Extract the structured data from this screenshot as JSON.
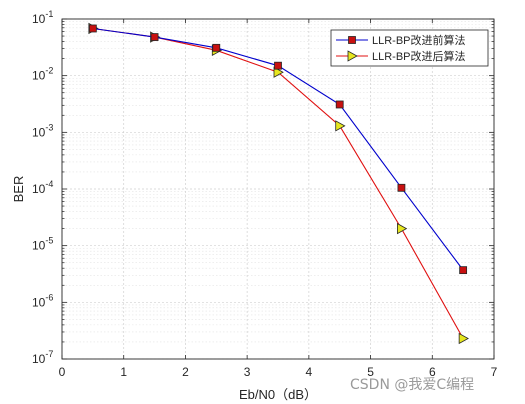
{
  "chart_data": {
    "type": "line",
    "xlabel": "Eb/N0（dB）",
    "ylabel": "BER",
    "xlim": [
      0,
      7
    ],
    "ylim_exponents": [
      -7,
      -1
    ],
    "y_scale": "log",
    "grid": true,
    "legend_position": "top-right",
    "x_ticks": [
      "0",
      "1",
      "2",
      "3",
      "4",
      "5",
      "6",
      "7"
    ],
    "y_tick_exponents": [
      "-7",
      "-6",
      "-5",
      "-4",
      "-3",
      "-2",
      "-1"
    ],
    "y_tick_base": "10",
    "series": [
      {
        "name": "LLR-BP改进前算法",
        "color": "#0000cc",
        "marker": "square",
        "marker_color": "#c81010",
        "x": [
          0.5,
          1.5,
          2.5,
          3.5,
          4.5,
          5.5,
          6.5
        ],
        "y": [
          0.068,
          0.048,
          0.031,
          0.015,
          0.0031,
          0.000105,
          3.7e-06
        ]
      },
      {
        "name": "LLR-BP改进后算法",
        "color": "#e01010",
        "marker": "triangle-right",
        "marker_color": "#e6e61e",
        "x": [
          0.5,
          1.5,
          2.5,
          3.5,
          4.5,
          5.5,
          6.5
        ],
        "y": [
          0.068,
          0.048,
          0.028,
          0.0115,
          0.0013,
          2e-05,
          2.3e-07
        ]
      }
    ]
  },
  "watermark": "CSDN @我爱C编程"
}
